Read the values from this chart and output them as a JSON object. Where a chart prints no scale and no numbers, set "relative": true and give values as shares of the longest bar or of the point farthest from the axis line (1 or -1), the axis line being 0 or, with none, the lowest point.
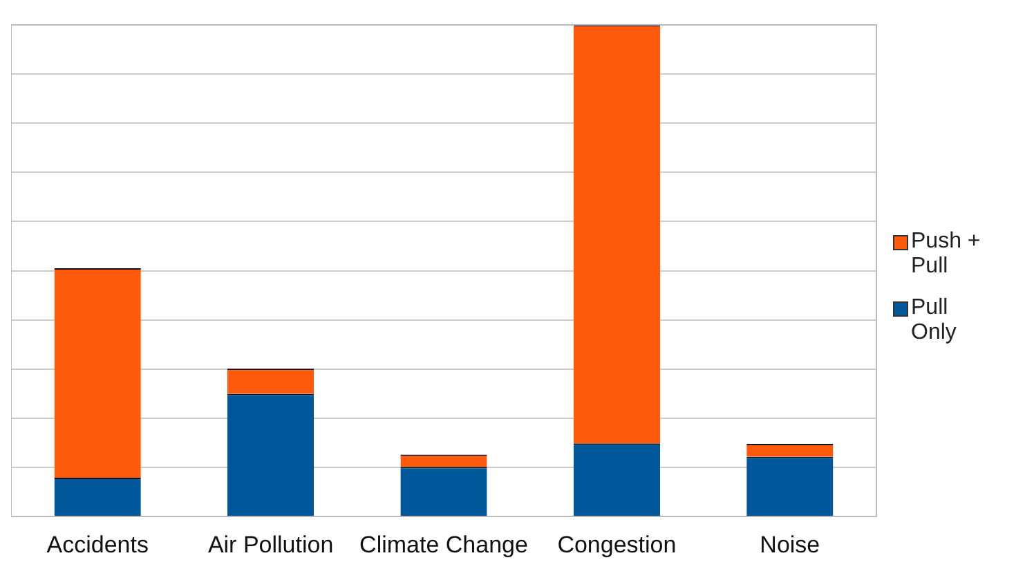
{
  "chart_data": {
    "type": "bar",
    "relative": true,
    "stacked": true,
    "grid": "y",
    "legend": "right",
    "categories": [
      "Accidents",
      "Air Pollution",
      "Climate Change",
      "Congestion",
      "Noise"
    ],
    "series": [
      {
        "name": "Pull Only",
        "color": "#00579a",
        "values": [
          0.079,
          0.25,
          0.101,
          0.149,
          0.122
        ]
      },
      {
        "name": "Push + Pull",
        "color": "#ff5a0c",
        "values": [
          0.426,
          0.051,
          0.025,
          0.851,
          0.026
        ]
      }
    ]
  }
}
